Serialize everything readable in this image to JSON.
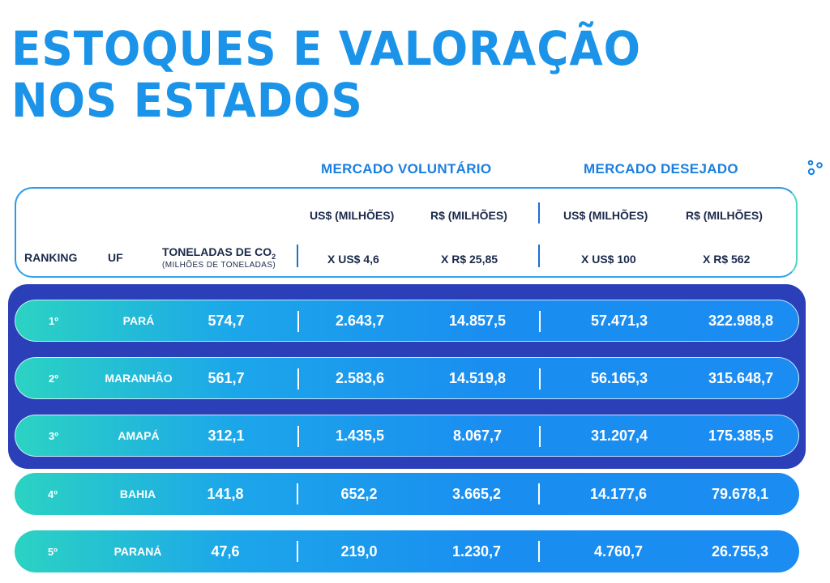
{
  "title": {
    "line1": "ESTOQUES E VALORAÇÃO",
    "line2": "NOS ESTADOS"
  },
  "groups": {
    "voluntario": "MERCADO VOLUNTÁRIO",
    "desejado": "MERCADO DESEJADO"
  },
  "header": {
    "ranking": "RANKING",
    "uf": "UF",
    "toneladas": "TONELADAS DE CO",
    "toneladas_sub": "2",
    "toneladas_note": "(MILHÕES DE TONELADAS)",
    "usd1": "US$ (MILHÕES)",
    "brl1": "R$ (MILHÕES)",
    "usd2": "US$ (MILHÕES)",
    "brl2": "R$ (MILHÕES)",
    "usd1_rate": "X US$ 4,6",
    "brl1_rate": "X R$ 25,85",
    "usd2_rate": "X US$ 100",
    "brl2_rate": "X R$ 562"
  },
  "rows": [
    {
      "rank": "1º",
      "uf": "PARÁ",
      "toneladas": "574,7",
      "vol_usd": "2.643,7",
      "vol_brl": "14.857,5",
      "des_usd": "57.471,3",
      "des_brl": "322.988,8"
    },
    {
      "rank": "2º",
      "uf": "MARANHÃO",
      "toneladas": "561,7",
      "vol_usd": "2.583,6",
      "vol_brl": "14.519,8",
      "des_usd": "56.165,3",
      "des_brl": "315.648,7"
    },
    {
      "rank": "3º",
      "uf": "AMAPÁ",
      "toneladas": "312,1",
      "vol_usd": "1.435,5",
      "vol_brl": "8.067,7",
      "des_usd": "31.207,4",
      "des_brl": "175.385,5"
    },
    {
      "rank": "4º",
      "uf": "BAHIA",
      "toneladas": "141,8",
      "vol_usd": "652,2",
      "vol_brl": "3.665,2",
      "des_usd": "14.177,6",
      "des_brl": "79.678,1"
    },
    {
      "rank": "5º",
      "uf": "PARANÁ",
      "toneladas": "47,6",
      "vol_usd": "219,0",
      "vol_brl": "1.230,7",
      "des_usd": "4.760,7",
      "des_brl": "26.755,3"
    }
  ],
  "colors": {
    "title": "#1a93e8",
    "accent": "#1a7fe0",
    "highlight": "#2a3fb8",
    "row_start": "#2bd3c2",
    "row_end": "#1b8cf2"
  },
  "icons": {
    "decor": "dots-icon"
  }
}
